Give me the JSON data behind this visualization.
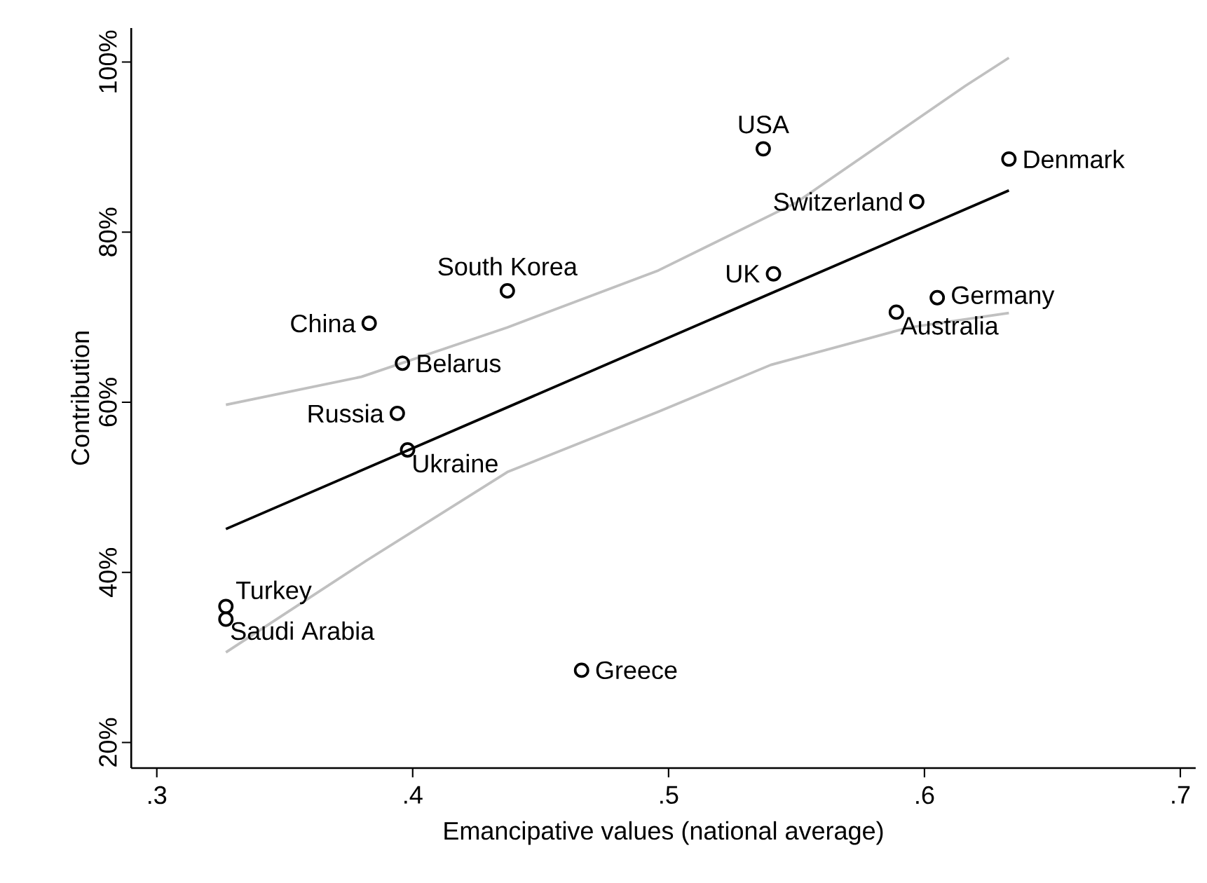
{
  "chart_data": {
    "type": "scatter",
    "xlabel": "Emancipative values (national average)",
    "ylabel": "Contribution",
    "xlim": [
      0.29,
      0.706
    ],
    "ylim": [
      17,
      104
    ],
    "xticks": [
      {
        "value": 0.3,
        "label": ".3"
      },
      {
        "value": 0.4,
        "label": ".4"
      },
      {
        "value": 0.5,
        "label": ".5"
      },
      {
        "value": 0.6,
        "label": ".6"
      },
      {
        "value": 0.7,
        "label": ".7"
      }
    ],
    "yticks": [
      {
        "value": 20,
        "label": "20%"
      },
      {
        "value": 40,
        "label": "40%"
      },
      {
        "value": 60,
        "label": "60%"
      },
      {
        "value": 80,
        "label": "80%"
      },
      {
        "value": 100,
        "label": "100%"
      }
    ],
    "marker": "circle",
    "series": [
      {
        "type": "line",
        "color": "#c0c0c0",
        "x": [
          0.327,
          0.38,
          0.437,
          0.496,
          0.55,
          0.616,
          0.633
        ],
        "values": [
          59.7,
          63.0,
          68.8,
          75.5,
          83.5,
          97.2,
          100.5
        ],
        "marker": "none"
      },
      {
        "type": "line",
        "color": "#c0c0c0",
        "x": [
          0.327,
          0.382,
          0.437,
          0.496,
          0.54,
          0.594,
          0.633
        ],
        "values": [
          30.6,
          41.4,
          51.8,
          58.9,
          64.4,
          68.8,
          70.5
        ],
        "marker": "none"
      },
      {
        "type": "line",
        "color": "#000000",
        "x": [
          0.327,
          0.633
        ],
        "values": [
          45.1,
          84.9
        ],
        "marker": "none"
      },
      {
        "color": "#000000",
        "x": [
          0.537,
          0.633,
          0.597,
          0.541,
          0.605,
          0.589,
          0.437,
          0.383,
          0.396,
          0.394,
          0.398,
          0.327,
          0.327,
          0.466
        ],
        "values": [
          89.8,
          88.6,
          83.6,
          75.1,
          72.3,
          70.6,
          73.1,
          69.3,
          64.6,
          58.7,
          54.4,
          36.0,
          34.5,
          28.5
        ]
      }
    ],
    "annotations": [
      {
        "text": "USA",
        "x": 0.537,
        "y": 89.8
      },
      {
        "text": "Denmark",
        "x": 0.633,
        "y": 88.6
      },
      {
        "text": "Switzerland",
        "x": 0.597,
        "y": 83.6
      },
      {
        "text": "UK",
        "x": 0.541,
        "y": 75.1
      },
      {
        "text": "Germany",
        "x": 0.605,
        "y": 72.3
      },
      {
        "text": "Australia",
        "x": 0.589,
        "y": 70.6
      },
      {
        "text": "South Korea",
        "x": 0.437,
        "y": 73.1
      },
      {
        "text": "China",
        "x": 0.383,
        "y": 69.3
      },
      {
        "text": "Belarus",
        "x": 0.396,
        "y": 64.6
      },
      {
        "text": "Russia",
        "x": 0.394,
        "y": 58.7
      },
      {
        "text": "Ukraine",
        "x": 0.398,
        "y": 54.4
      },
      {
        "text": "Turkey",
        "x": 0.327,
        "y": 36.0
      },
      {
        "text": "Saudi Arabia",
        "x": 0.327,
        "y": 34.5
      },
      {
        "text": "Greece",
        "x": 0.466,
        "y": 28.5
      }
    ]
  }
}
